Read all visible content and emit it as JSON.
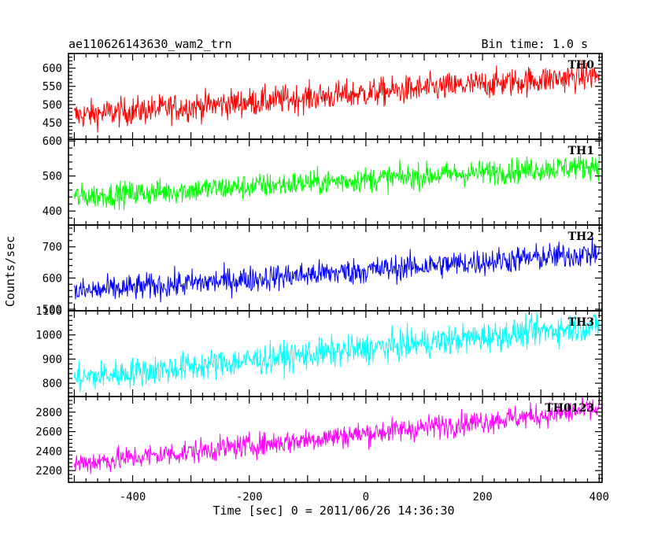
{
  "chart_data": {
    "type": "line",
    "title_left": "ae110626143630_wam2_trn",
    "title_right": "Bin time: 1.0 s",
    "xlabel": "Time [sec] 0 = 2011/06/26 14:36:30",
    "ylabel": "Counts/sec",
    "x_range": [
      -510,
      405
    ],
    "x_ticks": [
      -400,
      -200,
      0,
      200,
      400
    ],
    "x_data_range": [
      -500,
      400
    ],
    "bin_time_s": 1.0,
    "grid": false,
    "panels": [
      {
        "name": "TH0",
        "color": "#ff0000",
        "ylim": [
          405,
          640
        ],
        "yticks": [
          450,
          500,
          550,
          600
        ],
        "trend_start": 470,
        "trend_end": 580,
        "noise_amplitude": 35
      },
      {
        "name": "TH1",
        "color": "#00ff00",
        "ylim": [
          360,
          605
        ],
        "yticks": [
          400,
          500,
          600
        ],
        "trend_start": 440,
        "trend_end": 530,
        "noise_amplitude": 32
      },
      {
        "name": "TH2",
        "color": "#0000ff",
        "ylim": [
          495,
          770
        ],
        "yticks": [
          500,
          600,
          700
        ],
        "trend_start": 555,
        "trend_end": 680,
        "noise_amplitude": 38
      },
      {
        "name": "TH3",
        "color": "#00ffff",
        "ylim": [
          745,
          1100
        ],
        "yticks": [
          800,
          900,
          1000,
          1100
        ],
        "trend_start": 820,
        "trend_end": 1040,
        "noise_amplitude": 55
      },
      {
        "name": "TH0123",
        "color": "#ff00ff",
        "ylim": [
          2080,
          2960
        ],
        "yticks": [
          2200,
          2400,
          2600,
          2800
        ],
        "trend_start": 2270,
        "trend_end": 2830,
        "noise_amplitude": 110
      }
    ]
  }
}
